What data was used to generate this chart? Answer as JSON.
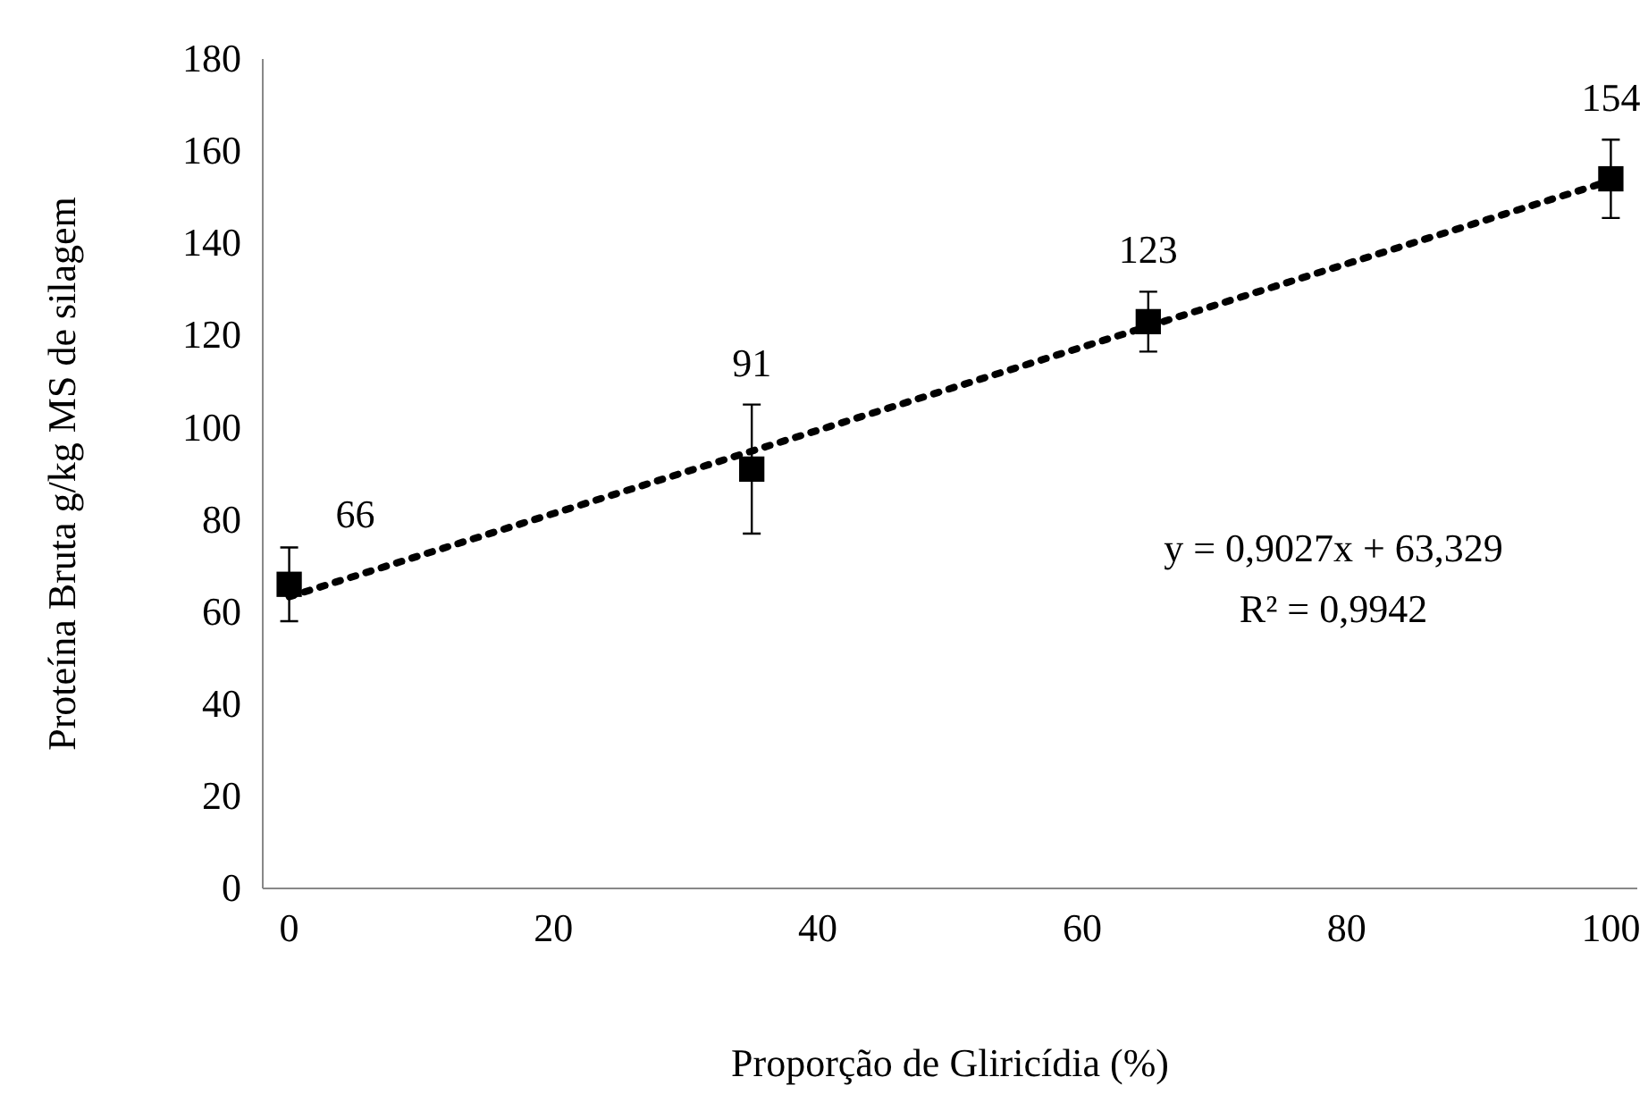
{
  "chart_data": {
    "type": "scatter",
    "xlabel": "Proporção de Gliricídia (%)",
    "ylabel": "Proteína Bruta  g/kg MS de silagem",
    "xlim": [
      -2,
      102
    ],
    "xticks": [
      0,
      20,
      40,
      60,
      80,
      100
    ],
    "ylim": [
      0,
      180
    ],
    "yticks": [
      0,
      20,
      40,
      60,
      80,
      100,
      120,
      140,
      160,
      180
    ],
    "grid": false,
    "series": [
      {
        "type": "scatter",
        "color": "#000000",
        "x": [
          0,
          35,
          65,
          100
        ],
        "values": [
          66,
          91,
          123,
          154
        ],
        "errors": [
          8,
          14,
          6.5,
          8.5
        ],
        "value_labels": [
          "66",
          "91",
          "123",
          "154"
        ],
        "marker": "square"
      },
      {
        "type": "line",
        "color": "#000000",
        "x": [
          0,
          100
        ],
        "values": [
          63.3,
          153.6
        ],
        "line_style": "dotted"
      }
    ],
    "annotations": [
      "y = 0,9027x + 63,329",
      "R² = 0,9942"
    ]
  }
}
